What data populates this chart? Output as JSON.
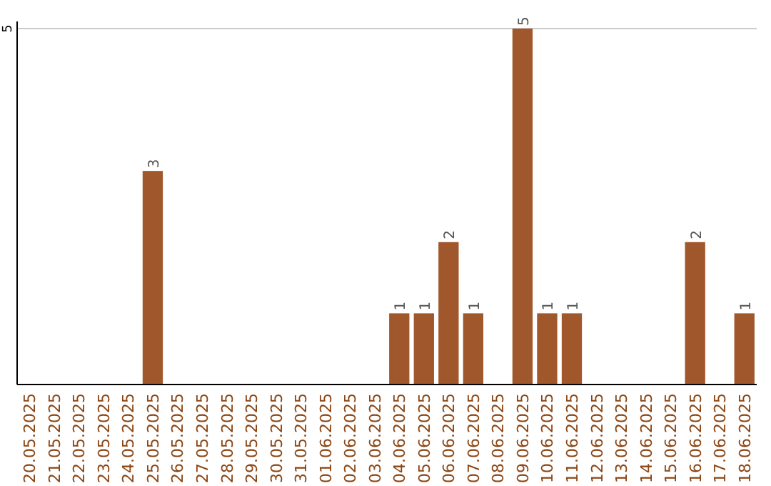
{
  "chart_data": {
    "type": "bar",
    "categories": [
      "20.05.2025",
      "21.05.2025",
      "22.05.2025",
      "23.05.2025",
      "24.05.2025",
      "25.05.2025",
      "26.05.2025",
      "27.05.2025",
      "28.05.2025",
      "29.05.2025",
      "30.05.2025",
      "31.05.2025",
      "01.06.2025",
      "02.06.2025",
      "03.06.2025",
      "04.06.2025",
      "05.06.2025",
      "06.06.2025",
      "07.06.2025",
      "08.06.2025",
      "09.06.2025",
      "10.06.2025",
      "11.06.2025",
      "12.06.2025",
      "13.06.2025",
      "14.06.2025",
      "15.06.2025",
      "16.06.2025",
      "17.06.2025",
      "18.06.2025"
    ],
    "values": [
      0,
      0,
      0,
      0,
      0,
      3,
      0,
      0,
      0,
      0,
      0,
      0,
      0,
      0,
      0,
      1,
      1,
      2,
      1,
      0,
      5,
      1,
      1,
      0,
      0,
      0,
      0,
      2,
      0,
      1
    ],
    "value_labels": [
      null,
      null,
      null,
      null,
      null,
      "3",
      null,
      null,
      null,
      null,
      null,
      null,
      null,
      null,
      null,
      "1",
      "1",
      "2",
      "1",
      null,
      "5",
      "1",
      "1",
      null,
      null,
      null,
      null,
      "2",
      null,
      "1"
    ],
    "color": "#a0572b",
    "ylim": [
      0,
      5.1
    ],
    "yticks": [
      5
    ],
    "grid": "y"
  }
}
